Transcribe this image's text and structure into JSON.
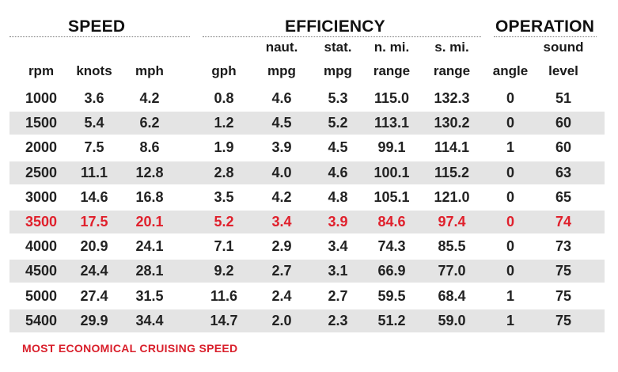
{
  "groups": {
    "speed": "SPEED",
    "efficiency": "EFFICIENCY",
    "operation": "OPERATION"
  },
  "headers": {
    "rpm": [
      "",
      "rpm"
    ],
    "knots": [
      "",
      "knots"
    ],
    "mph": [
      "",
      "mph"
    ],
    "gph": [
      "",
      "gph"
    ],
    "naut_mpg": [
      "naut.",
      "mpg"
    ],
    "stat_mpg": [
      "stat.",
      "mpg"
    ],
    "nmi_range": [
      "n. mi.",
      "range"
    ],
    "smi_range": [
      "s. mi.",
      "range"
    ],
    "angle": [
      "",
      "angle"
    ],
    "sound": [
      "sound",
      "level"
    ]
  },
  "rows": [
    [
      "1000",
      "3.6",
      "4.2",
      "0.8",
      "4.6",
      "5.3",
      "115.0",
      "132.3",
      "0",
      "51"
    ],
    [
      "1500",
      "5.4",
      "6.2",
      "1.2",
      "4.5",
      "5.2",
      "113.1",
      "130.2",
      "0",
      "60"
    ],
    [
      "2000",
      "7.5",
      "8.6",
      "1.9",
      "3.9",
      "4.5",
      "99.1",
      "114.1",
      "1",
      "60"
    ],
    [
      "2500",
      "11.1",
      "12.8",
      "2.8",
      "4.0",
      "4.6",
      "100.1",
      "115.2",
      "0",
      "63"
    ],
    [
      "3000",
      "14.6",
      "16.8",
      "3.5",
      "4.2",
      "4.8",
      "105.1",
      "121.0",
      "0",
      "65"
    ],
    [
      "3500",
      "17.5",
      "20.1",
      "5.2",
      "3.4",
      "3.9",
      "84.6",
      "97.4",
      "0",
      "74"
    ],
    [
      "4000",
      "20.9",
      "24.1",
      "7.1",
      "2.9",
      "3.4",
      "74.3",
      "85.5",
      "0",
      "73"
    ],
    [
      "4500",
      "24.4",
      "28.1",
      "9.2",
      "2.7",
      "3.1",
      "66.9",
      "77.0",
      "0",
      "75"
    ],
    [
      "5000",
      "27.4",
      "31.5",
      "11.6",
      "2.4",
      "2.7",
      "59.5",
      "68.4",
      "1",
      "75"
    ],
    [
      "5400",
      "29.9",
      "34.4",
      "14.7",
      "2.0",
      "2.3",
      "51.2",
      "59.0",
      "1",
      "75"
    ]
  ],
  "highlight_row": 5,
  "highlight_color": "#e0202c",
  "footnote": "MOST ECONOMICAL CRUISING SPEED"
}
